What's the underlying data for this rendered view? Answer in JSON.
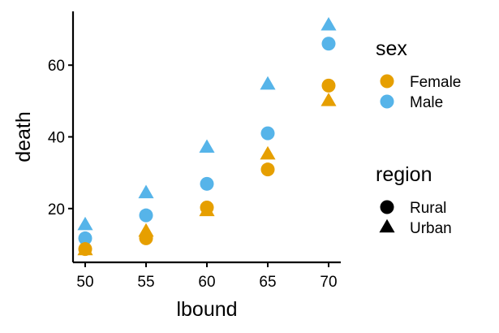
{
  "chart_data": {
    "type": "scatter",
    "xlabel": "lbound",
    "ylabel": "death",
    "x_ticks": [
      50,
      55,
      60,
      65,
      70
    ],
    "y_ticks": [
      20,
      40,
      60
    ],
    "xlim": [
      49,
      71
    ],
    "ylim": [
      5,
      75
    ],
    "grid": false,
    "colors": {
      "Female": "#E69F00",
      "Male": "#56B4E9"
    },
    "shapes": {
      "Rural": "circle",
      "Urban": "triangle"
    },
    "legend_placement": "right",
    "legends": [
      {
        "title": "sex",
        "entries": [
          {
            "label": "Female",
            "color": "#E69F00",
            "shape": "circle"
          },
          {
            "label": "Male",
            "color": "#56B4E9",
            "shape": "circle"
          }
        ]
      },
      {
        "title": "region",
        "entries": [
          {
            "label": "Rural",
            "color": "#000000",
            "shape": "circle"
          },
          {
            "label": "Urban",
            "color": "#000000",
            "shape": "triangle"
          }
        ]
      }
    ],
    "series": [
      {
        "sex": "Male",
        "region": "Urban",
        "x": [
          50,
          55,
          60,
          65,
          70
        ],
        "y": [
          15.4,
          24.3,
          37.0,
          54.6,
          71.1
        ]
      },
      {
        "sex": "Male",
        "region": "Rural",
        "x": [
          50,
          55,
          60,
          65,
          70
        ],
        "y": [
          11.7,
          18.1,
          26.9,
          41.0,
          66.0
        ]
      },
      {
        "sex": "Female",
        "region": "Rural",
        "x": [
          50,
          55,
          60,
          65,
          70
        ],
        "y": [
          8.7,
          11.7,
          20.3,
          30.9,
          54.3
        ]
      },
      {
        "sex": "Female",
        "region": "Urban",
        "x": [
          50,
          55,
          60,
          65,
          70
        ],
        "y": [
          8.4,
          13.6,
          19.3,
          35.1,
          50.0
        ]
      }
    ]
  }
}
